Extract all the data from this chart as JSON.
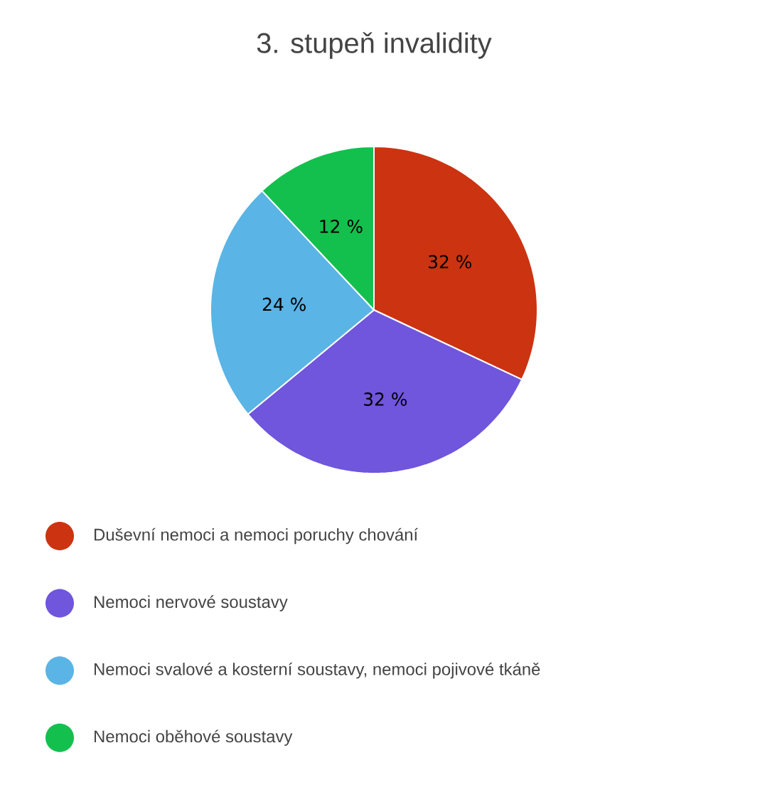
{
  "chart_data": {
    "type": "pie",
    "title": "3. stupeň invalidity",
    "categories": [
      "Duševní nemoci a nemoci poruchy chování",
      "Nemoci nervové soustavy",
      "Nemoci svalové a kosterní soustavy, nemoci pojivové tkáně",
      "Nemoci oběhové soustavy"
    ],
    "values": [
      32,
      32,
      24,
      12
    ],
    "colors": [
      "#cc3311",
      "#7055dd",
      "#5ab4e5",
      "#13c04d"
    ],
    "value_labels": [
      "32 %",
      "32 %",
      "24 %",
      "12 %"
    ],
    "legend": "bottom"
  }
}
